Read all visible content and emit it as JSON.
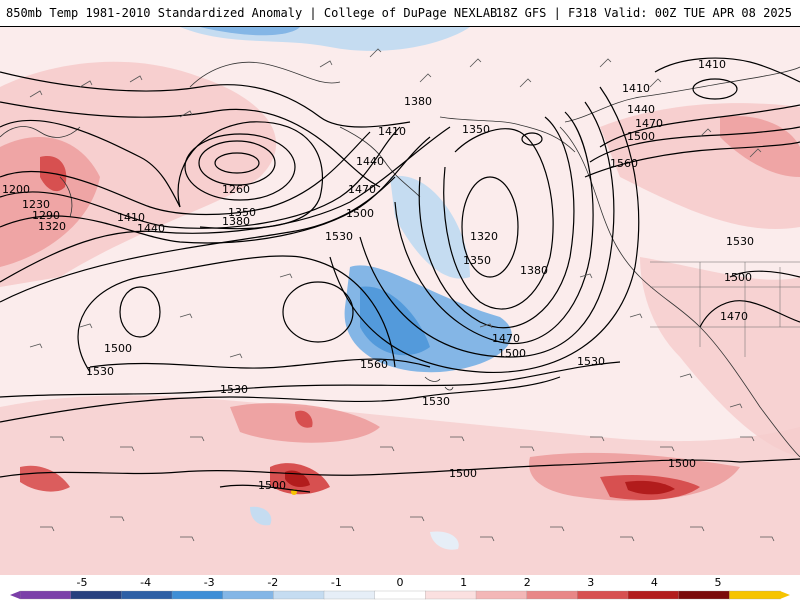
{
  "header": {
    "left_title": "850mb Temp 1981-2010 Standardized Anomaly | College of DuPage NEXLAB",
    "right_title": "18Z GFS | F318 Valid: 00Z TUE APR 08 2025"
  },
  "contours": [
    {
      "label": "1200"
    },
    {
      "label": "1230"
    },
    {
      "label": "1260"
    },
    {
      "label": "1290"
    },
    {
      "label": "1320"
    },
    {
      "label": "1350"
    },
    {
      "label": "1380"
    },
    {
      "label": "1410"
    },
    {
      "label": "1440"
    },
    {
      "label": "1470"
    },
    {
      "label": "1500"
    },
    {
      "label": "1530"
    },
    {
      "label": "1560"
    }
  ],
  "colorbar": {
    "ticks": [
      "-5",
      "-4",
      "-3",
      "-2",
      "-1",
      "0",
      "1",
      "2",
      "3",
      "4",
      "5"
    ],
    "colors": [
      "#7b3fa8",
      "#27407e",
      "#2d5fa5",
      "#3e8ed6",
      "#84b6e6",
      "#c5dcf1",
      "#e6eef7",
      "#ffffff",
      "#fbe0e0",
      "#f3b7b7",
      "#e88787",
      "#d75050",
      "#b21c1c",
      "#7a0b0b",
      "#f6c400"
    ]
  }
}
